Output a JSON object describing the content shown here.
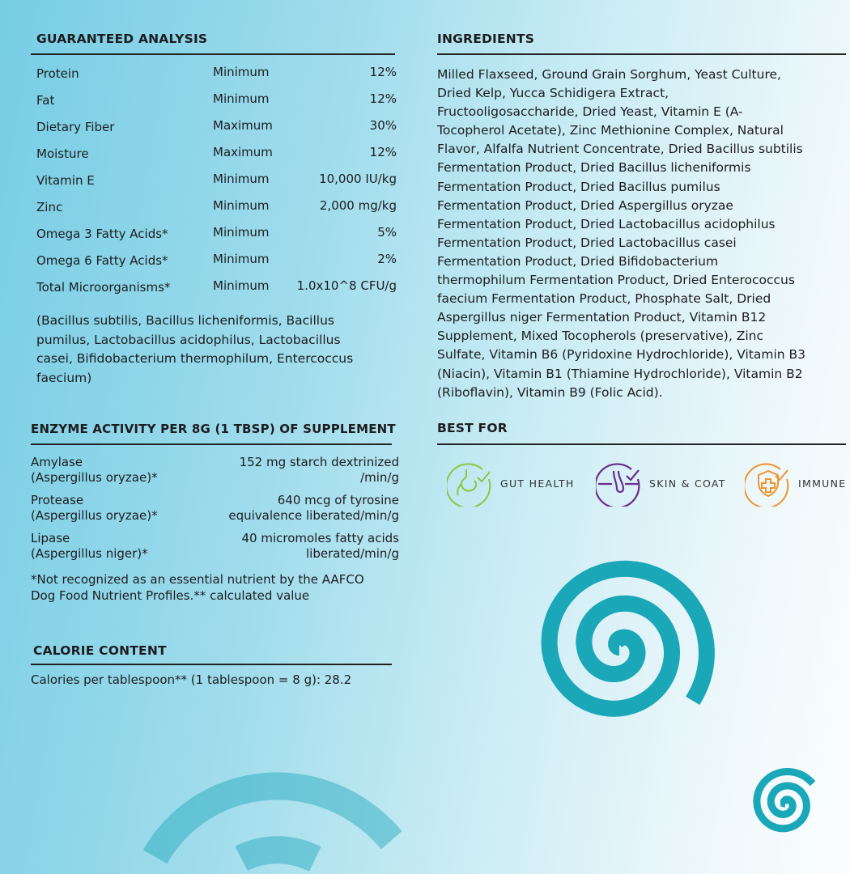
{
  "guaranteed_analysis": {
    "title": "GUARANTEED ANALYSIS",
    "rows": [
      {
        "name": "Protein",
        "qualifier": "Minimum",
        "value": "12%"
      },
      {
        "name": "Fat",
        "qualifier": "Minimum",
        "value": "12%"
      },
      {
        "name": "Dietary Fiber",
        "qualifier": "Maximum",
        "value": "30%"
      },
      {
        "name": "Moisture",
        "qualifier": "Maximum",
        "value": "12%"
      },
      {
        "name": "Vitamin E",
        "qualifier": "Minimum",
        "value": "10,000 IU/kg"
      },
      {
        "name": "Zinc",
        "qualifier": "Minimum",
        "value": "2,000 mg/kg"
      },
      {
        "name": "Omega 3 Fatty Acids*",
        "qualifier": "Minimum",
        "value": "5%"
      },
      {
        "name": "Omega 6 Fatty Acids*",
        "qualifier": "Minimum",
        "value": "2%"
      },
      {
        "name": "Total Microorganisms*",
        "qualifier": "Minimum",
        "value": "1.0x10^8 CFU/g"
      }
    ],
    "note_lines": [
      "(Bacillus subtilis, Bacillus licheniformis, Bacillus",
      "pumilus, Lactobacillus acidophilus, Lactobacillus",
      "casei, Bifidobacterium thermophilum, Entercoccus",
      "faecium)"
    ]
  },
  "enzyme_activity": {
    "title": "ENZYME ACTIVITY PER 8G (1 TBSP) OF SUPPLEMENT",
    "rows": [
      {
        "name": "Amylase",
        "source": "(Aspergillus oryzae)*",
        "value1": "152 mg starch dextrinized",
        "value2": "/min/g"
      },
      {
        "name": "Protease",
        "source": "(Aspergillus oryzae)*",
        "value1": "640 mcg of tyrosine",
        "value2": "equivalence liberated/min/g"
      },
      {
        "name": "Lipase",
        "source": "(Aspergillus niger)*",
        "value1": "40 micromoles fatty acids",
        "value2": "liberated/min/g"
      }
    ],
    "footnote_lines": [
      "*Not recognized as an essential nutrient by the AAFCO",
      "Dog Food Nutrient Profiles.** calculated value"
    ]
  },
  "calorie_content": {
    "title": "CALORIE CONTENT",
    "text": "Calories per tablespoon** (1 tablespoon = 8 g): 28.2"
  },
  "ingredients": {
    "title": "INGREDIENTS",
    "lines": [
      "Milled Flaxseed, Ground Grain Sorghum, Yeast Culture,",
      "Dried Kelp, Yucca Schidigera Extract,",
      "Fructooligosaccharide, Dried Yeast, Vitamin E (A-",
      "Tocopherol Acetate), Zinc Methionine Complex, Natural",
      "Flavor, Alfalfa Nutrient Concentrate, Dried Bacillus subtilis",
      "Fermentation Product, Dried Bacillus licheniformis",
      "Fermentation Product, Dried Bacillus pumilus",
      "Fermentation Product, Dried Aspergillus oryzae",
      "Fermentation Product, Dried Lactobacillus acidophilus",
      "Fermentation Product, Dried Lactobacillus casei",
      "Fermentation Product, Dried Bifidobacterium",
      "thermophilum Fermentation Product, Dried Enterococcus",
      "faecium Fermentation Product, Phosphate Salt, Dried",
      "Aspergillus niger Fermentation Product, Vitamin B12",
      "Supplement, Mixed Tocopherols (preservative), Zinc",
      "Sulfate, Vitamin B6 (Pyridoxine Hydrochloride), Vitamin B3",
      "(Niacin), Vitamin B1 (Thiamine Hydrochloride), Vitamin B2",
      "(Riboflavin), Vitamin B9 (Folic Acid)."
    ]
  },
  "best_for": {
    "title": "BEST FOR",
    "items": [
      {
        "label": "GUT HEALTH",
        "icon": "stomach-check-icon",
        "color": "#8cc63f"
      },
      {
        "label": "SKIN & COAT",
        "icon": "hair-follicle-check-icon",
        "color": "#6b2d8c"
      },
      {
        "label": "IMMUNE",
        "icon": "shield-plus-check-icon",
        "color": "#f0932b"
      }
    ]
  },
  "colors": {
    "spiral": "#1aa7b8",
    "text": "#1d1d1f"
  }
}
